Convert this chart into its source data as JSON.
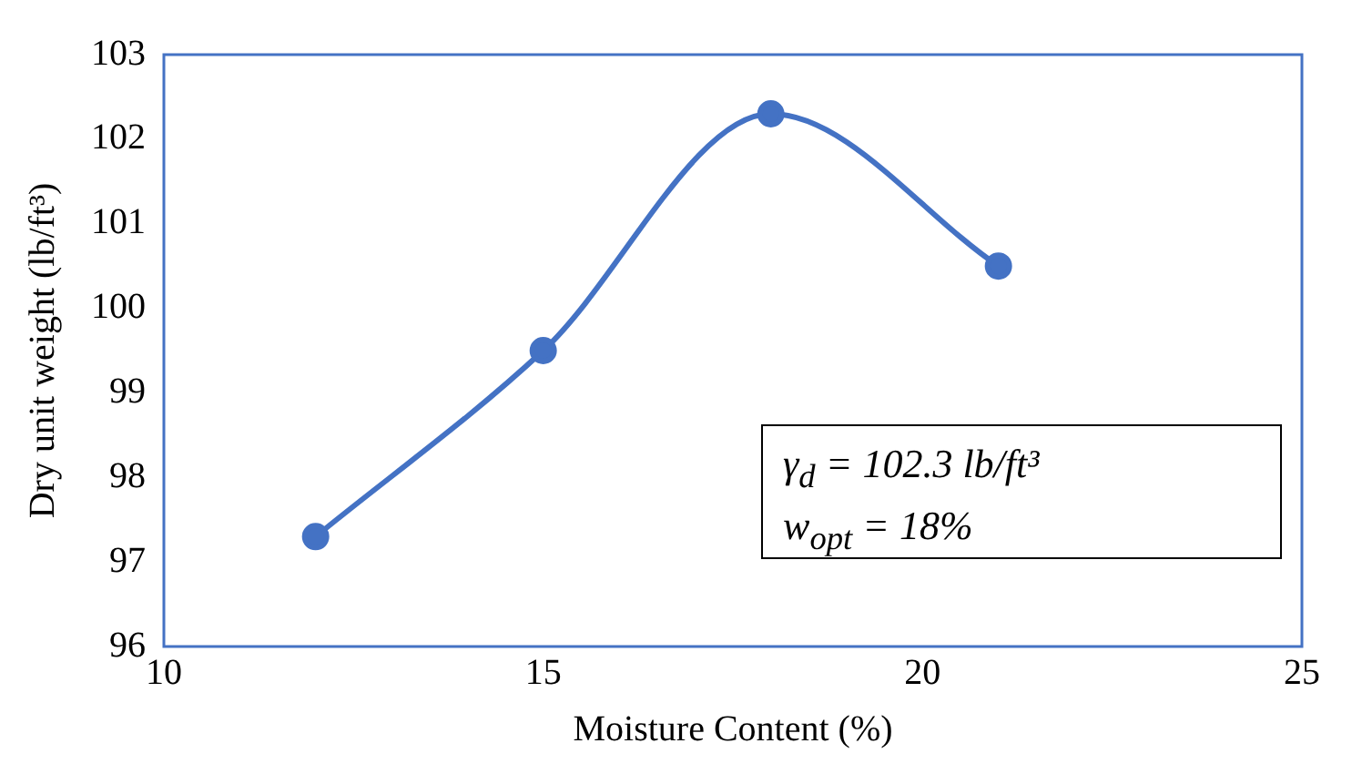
{
  "chart_data": {
    "type": "line",
    "xlabel": "Moisture Content (%)",
    "ylabel": "Dry unit weight (lb/ft³)",
    "x": [
      12,
      15,
      18,
      21
    ],
    "series": [
      {
        "color": "#4472c4",
        "values": [
          97.3,
          99.5,
          102.3,
          100.5
        ]
      }
    ],
    "xlim": [
      10,
      25
    ],
    "xticks": [
      10,
      15,
      20,
      25
    ],
    "ylim": [
      96,
      103
    ],
    "yticks": [
      96,
      97,
      98,
      99,
      100,
      101,
      102,
      103
    ],
    "grid": false,
    "legend": false,
    "marker": "circle",
    "line_style": "solid",
    "annotations": [
      "γ$_{d}$ = 102.3 lb/ft³",
      "w$_{opt}$ = 18%"
    ]
  }
}
